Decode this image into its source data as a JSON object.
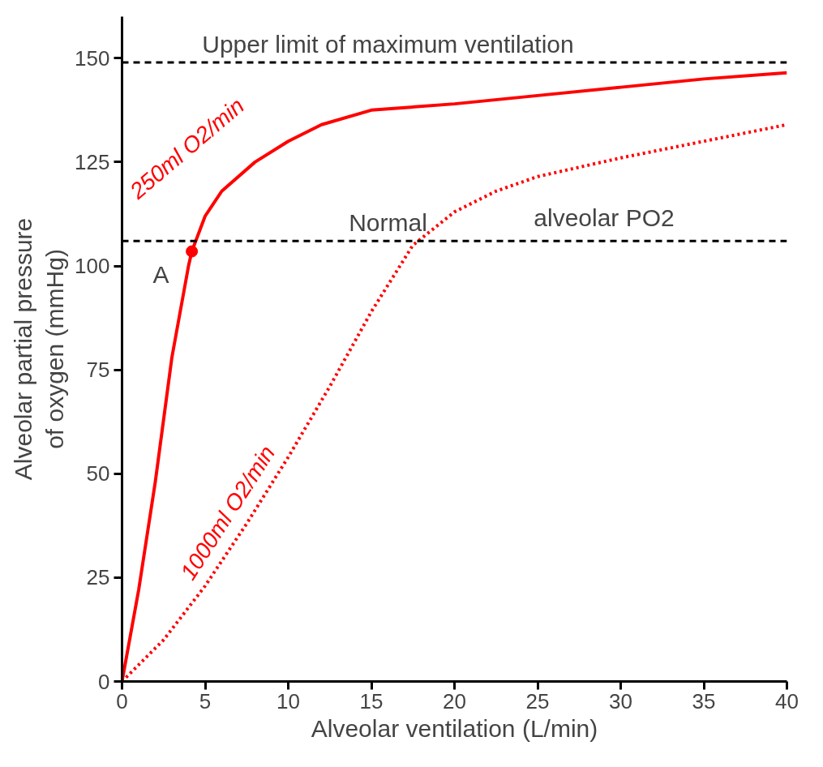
{
  "chart_data": {
    "type": "line",
    "xlabel": "Alveolar ventilation (L/min)",
    "ylabel": "Alveolar partial pressure\nof oxygen (mmHg)",
    "xlim": [
      0,
      40
    ],
    "ylim": [
      0,
      160
    ],
    "xticks": [
      0,
      5,
      10,
      15,
      20,
      25,
      30,
      35,
      40
    ],
    "yticks": [
      0,
      25,
      50,
      75,
      100,
      125,
      150
    ],
    "grid": false,
    "marker": "none",
    "series": [
      {
        "name": "250ml O2/min",
        "color": "#ff0000",
        "line_style": "solid",
        "x": [
          0,
          1,
          2,
          3,
          4,
          4.2,
          5,
          6,
          8,
          10,
          12,
          15,
          20,
          25,
          30,
          35,
          40
        ],
        "values": [
          0,
          22,
          48,
          78,
          100,
          103.5,
          112,
          118,
          125,
          130,
          134,
          137.5,
          139,
          141,
          143,
          145,
          146.5
        ]
      },
      {
        "name": "1000ml O2/min",
        "color": "#ff0000",
        "line_style": "dotted",
        "x": [
          0,
          2.5,
          5,
          7.5,
          10,
          12.5,
          15,
          17.5,
          20,
          22.5,
          25,
          30,
          35,
          40
        ],
        "values": [
          0,
          10,
          23,
          38,
          54,
          71,
          89,
          105,
          113,
          118,
          121.5,
          126,
          130,
          134
        ]
      },
      {
        "type": "scatter",
        "marker": "circle",
        "color": "#ff0000",
        "x": [
          4.2
        ],
        "values": [
          103.5
        ]
      }
    ],
    "ref_lines": [
      {
        "axis": "y",
        "value": 149,
        "label": "Upper limit of maximum ventilation",
        "line_style": "dashed",
        "color": "#000000"
      },
      {
        "axis": "y",
        "value": 106,
        "label": "Normal",
        "line_style": "dashed",
        "color": "#000000"
      }
    ],
    "annotations": [
      "alveolar PO2",
      {
        "text": "A",
        "x": 4.2,
        "y": 103.5
      }
    ]
  }
}
